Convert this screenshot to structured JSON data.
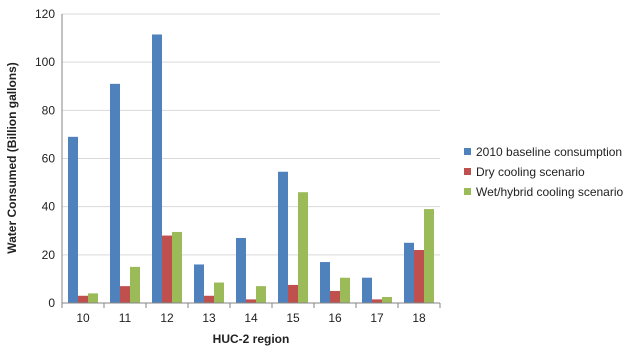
{
  "chart_data": {
    "type": "bar",
    "title": "",
    "xlabel": "HUC-2 region",
    "ylabel": "Water Consumed (Billion gallons)",
    "ylim": [
      0,
      120
    ],
    "yticks": [
      "0",
      "20",
      "40",
      "60",
      "80",
      "100",
      "120"
    ],
    "grid": true,
    "legend_position": "right",
    "categories": [
      "10",
      "11",
      "12",
      "13",
      "14",
      "15",
      "16",
      "17",
      "18"
    ],
    "series": [
      {
        "name": "2010 baseline consumption",
        "color": "#4F81BD",
        "values": [
          69,
          91,
          111.5,
          16,
          27,
          54.5,
          17,
          10.5,
          25
        ]
      },
      {
        "name": "Dry cooling scenario",
        "color": "#C0504D",
        "values": [
          3,
          7,
          28,
          3,
          1.5,
          7.5,
          5,
          1.5,
          22
        ]
      },
      {
        "name": "Wet/hybrid cooling scenario",
        "color": "#9BBB59",
        "values": [
          4,
          15,
          29.5,
          8.5,
          7,
          46,
          10.5,
          2.5,
          39
        ]
      }
    ]
  }
}
